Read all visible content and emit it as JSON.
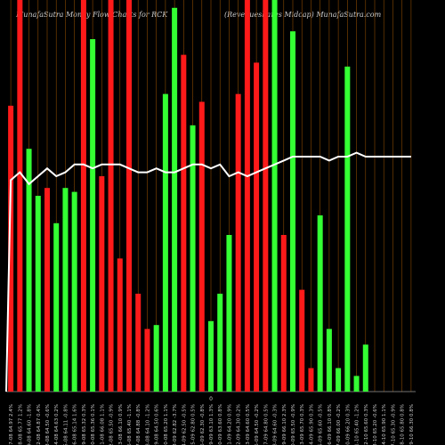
{
  "header": {
    "left_title": "MunafaSutra  Money Flow  Charts for RCK",
    "right_title": "(Revenueshares Midcap) MunafaSutra.com"
  },
  "colors": {
    "background": "#000000",
    "up": "#33ff33",
    "down": "#ff1a1a",
    "line": "#ffffff",
    "grid": "#8a4a00",
    "baseline": "#999999",
    "label": "#cccccc"
  },
  "chart_data": {
    "type": "bar",
    "title": "MunafaSutra  Money Flow  Charts for RCK",
    "subtitle": "(Revenueshares Midcap) MunafaSutra.com",
    "ylim": [
      0,
      100
    ],
    "grid": true,
    "baseline_label": "0",
    "categories": [
      "07-08 64.97 2.4%",
      "08-08 65.77 1.2%",
      "09-08 64.60 -1.8%",
      "12-08 64.87 0.4%",
      "13-08 64.50 -0.6%",
      "14-08 64.63 0.2%",
      "15-08 64.11 -0.8%",
      "16-08 65.14 1.6%",
      "19-08 65.32 0.3%",
      "20-08 65.36 0.1%",
      "21-08 66.08 1.1%",
      "22-08 65.50 -0.9%",
      "23-08 66.10 0.9%",
      "26-08 65.40 -1.1%",
      "27-08 64.88 -0.8%",
      "28-08 64.10 -1.2%",
      "29-08 64.50 0.6%",
      "30-08 65.20 1.1%",
      "03-09 62.82 -3.7%",
      "04-09 62.50 -0.5%",
      "05-09 62.80 0.5%",
      "06-09 62.30 -0.8%",
      "09-09 63.10 1.3%",
      "10-09 63.60 0.8%",
      "11-09 64.20 0.9%",
      "12-09 64.30 0.2%",
      "13-09 64.60 0.5%",
      "16-09 64.50 -0.2%",
      "17-09 64.80 0.5%",
      "18-09 64.60 -0.3%",
      "19-09 66.10 2.3%",
      "20-09 65.50 -0.9%",
      "23-09 65.70 0.3%",
      "24-09 65.90 0.3%",
      "25-09 65.60 -0.5%",
      "26-09 66.10 0.8%",
      "27-09 66.00 -0.2%",
      "30-09 66.20 0.3%",
      "01-10 65.40 -1.2%",
      "02-10 65.60 0.3%",
      "03-10 65.20 -0.6%",
      "04-10 65.90 1.1%",
      "07-10 65.30 -0.9%",
      "08-10 65.80 0.8%",
      "09-10 66.30 0.8%"
    ],
    "direction": [
      "down",
      "down",
      "up",
      "up",
      "down",
      "up",
      "up",
      "up",
      "down",
      "up",
      "down",
      "down",
      "down",
      "down",
      "down",
      "down",
      "up",
      "up",
      "up",
      "down",
      "up",
      "down",
      "up",
      "up",
      "up",
      "down",
      "down",
      "down",
      "down",
      "up",
      "down",
      "up",
      "down",
      "down",
      "up",
      "up",
      "up",
      "up",
      "up",
      "up",
      "up",
      "down",
      "up",
      "up",
      "up"
    ],
    "values": [
      73,
      100,
      62,
      50,
      52,
      43,
      52,
      51,
      100,
      90,
      55,
      100,
      34,
      100,
      25,
      16,
      17,
      76,
      98,
      86,
      68,
      74,
      18,
      25,
      40,
      76,
      100,
      84,
      100,
      100,
      40,
      92,
      26,
      6,
      45,
      16,
      6,
      83,
      4,
      12,
      0,
      0,
      0,
      0,
      0
    ],
    "series": [
      {
        "values": [
          54,
          56,
          53,
          55,
          57,
          55,
          56,
          58,
          58,
          57,
          58,
          58,
          58,
          57,
          56,
          56,
          57,
          56,
          56,
          57,
          58,
          58,
          57,
          58,
          55,
          56,
          55,
          56,
          57,
          58,
          59,
          60,
          60,
          60,
          60,
          59,
          60,
          60,
          61,
          60,
          60,
          60,
          60,
          60,
          60
        ]
      }
    ]
  }
}
